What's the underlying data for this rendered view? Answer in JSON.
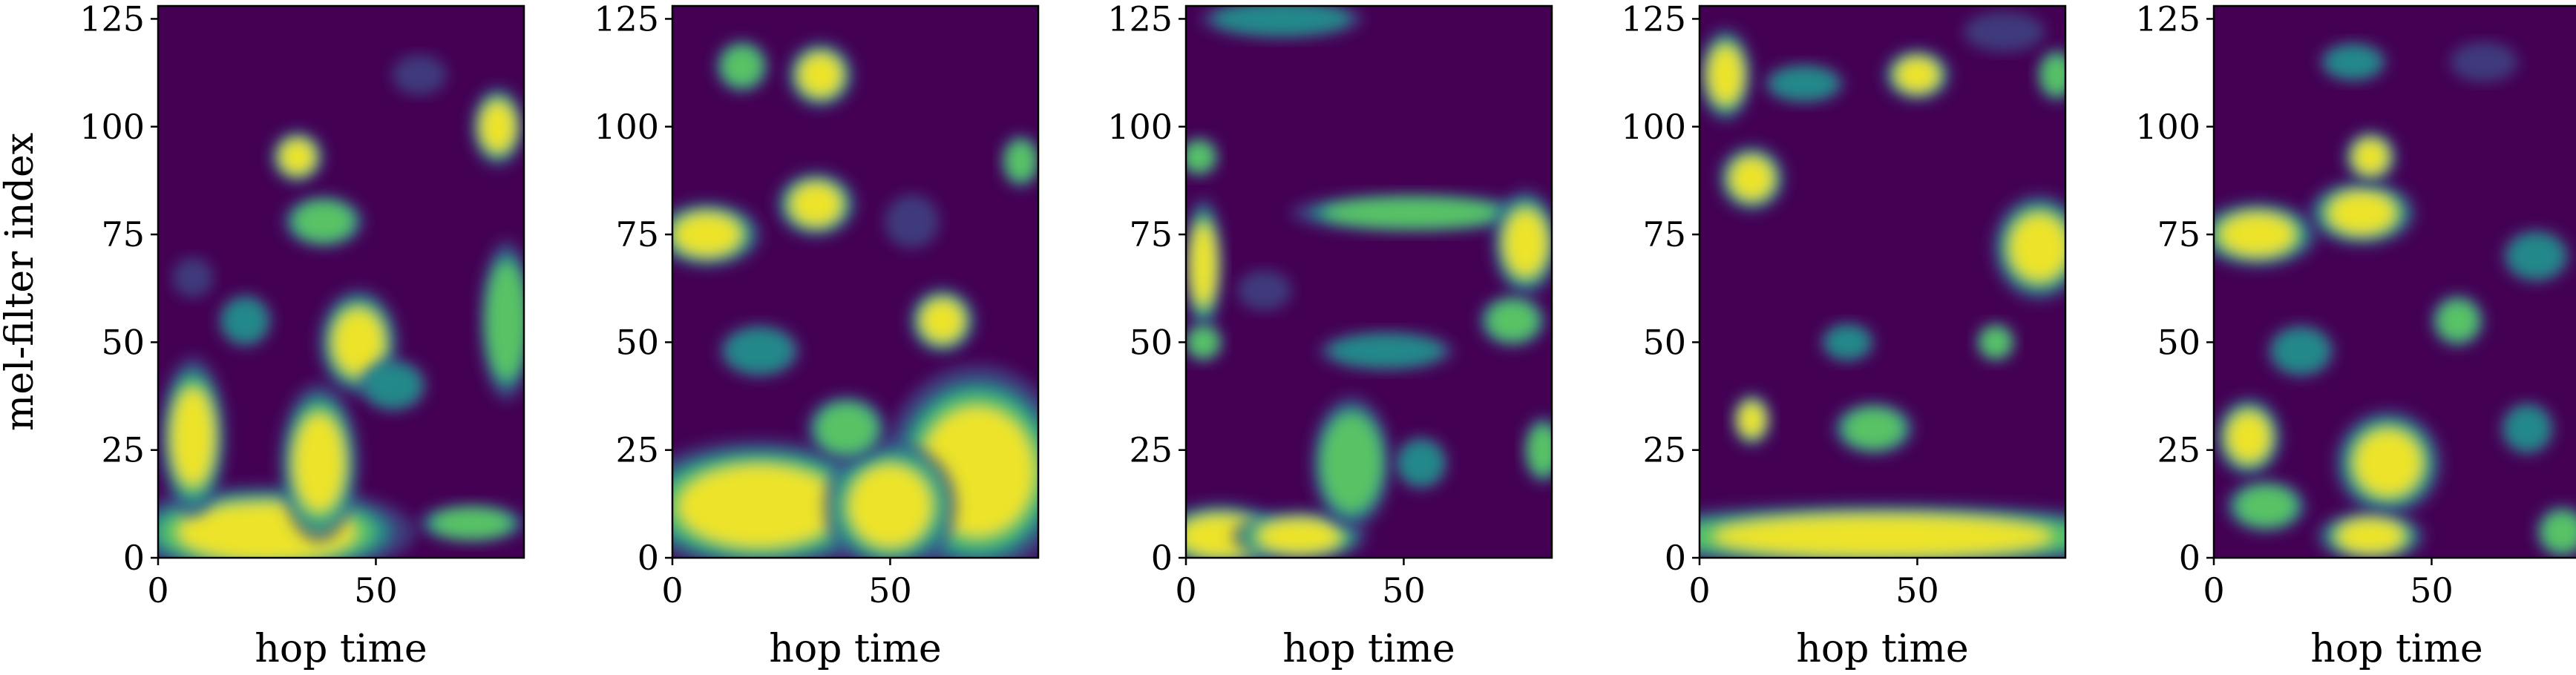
{
  "chart_data": {
    "type": "heatmap",
    "colormap": [
      "#440154",
      "#3b528b",
      "#21918c",
      "#5ec962",
      "#fde725"
    ],
    "panels": [
      {
        "xlabel": "hop time",
        "ylabel": "mel-filter index",
        "xlim": [
          0,
          84
        ],
        "ylim": [
          0,
          128
        ],
        "xticks": [
          0,
          50
        ],
        "yticks": [
          0,
          25,
          50,
          75,
          100,
          125
        ],
        "blobs": [
          {
            "x": 25,
            "y": 6,
            "rx": 22,
            "ry": 7,
            "v": 1.0
          },
          {
            "x": 8,
            "y": 28,
            "rx": 5,
            "ry": 12,
            "v": 1.0
          },
          {
            "x": 37,
            "y": 22,
            "rx": 6,
            "ry": 12,
            "v": 0.95
          },
          {
            "x": 46,
            "y": 50,
            "rx": 6,
            "ry": 8,
            "v": 0.9
          },
          {
            "x": 32,
            "y": 93,
            "rx": 4,
            "ry": 4,
            "v": 0.9
          },
          {
            "x": 38,
            "y": 78,
            "rx": 6,
            "ry": 4,
            "v": 0.8
          },
          {
            "x": 78,
            "y": 100,
            "rx": 4,
            "ry": 6,
            "v": 0.95
          },
          {
            "x": 80,
            "y": 55,
            "rx": 4,
            "ry": 12,
            "v": 0.75
          },
          {
            "x": 72,
            "y": 8,
            "rx": 8,
            "ry": 3,
            "v": 0.8
          },
          {
            "x": 20,
            "y": 55,
            "rx": 4,
            "ry": 4,
            "v": 0.6
          },
          {
            "x": 54,
            "y": 40,
            "rx": 5,
            "ry": 4,
            "v": 0.65
          },
          {
            "x": 60,
            "y": 112,
            "rx": 4,
            "ry": 3,
            "v": 0.55
          },
          {
            "x": 8,
            "y": 65,
            "rx": 3,
            "ry": 3,
            "v": 0.5
          }
        ]
      },
      {
        "xlabel": "hop time",
        "ylabel": "",
        "xlim": [
          0,
          84
        ],
        "ylim": [
          0,
          128
        ],
        "xticks": [
          0,
          50
        ],
        "yticks": [
          0,
          25,
          50,
          75,
          100,
          125
        ],
        "blobs": [
          {
            "x": 20,
            "y": 12,
            "rx": 20,
            "ry": 10,
            "v": 1.0
          },
          {
            "x": 70,
            "y": 20,
            "rx": 14,
            "ry": 16,
            "v": 1.0
          },
          {
            "x": 50,
            "y": 12,
            "rx": 10,
            "ry": 10,
            "v": 0.95
          },
          {
            "x": 8,
            "y": 75,
            "rx": 8,
            "ry": 5,
            "v": 1.0
          },
          {
            "x": 33,
            "y": 82,
            "rx": 6,
            "ry": 5,
            "v": 0.95
          },
          {
            "x": 34,
            "y": 112,
            "rx": 5,
            "ry": 5,
            "v": 1.0
          },
          {
            "x": 16,
            "y": 114,
            "rx": 4,
            "ry": 4,
            "v": 0.8
          },
          {
            "x": 62,
            "y": 55,
            "rx": 5,
            "ry": 5,
            "v": 0.9
          },
          {
            "x": 40,
            "y": 30,
            "rx": 6,
            "ry": 5,
            "v": 0.8
          },
          {
            "x": 80,
            "y": 92,
            "rx": 3,
            "ry": 4,
            "v": 0.8
          },
          {
            "x": 20,
            "y": 48,
            "rx": 6,
            "ry": 4,
            "v": 0.65
          },
          {
            "x": 55,
            "y": 78,
            "rx": 4,
            "ry": 4,
            "v": 0.55
          }
        ]
      },
      {
        "xlabel": "hop time",
        "ylabel": "",
        "xlim": [
          0,
          84
        ],
        "ylim": [
          0,
          128
        ],
        "xticks": [
          0,
          50
        ],
        "yticks": [
          0,
          25,
          50,
          75,
          100,
          125
        ],
        "blobs": [
          {
            "x": 8,
            "y": 5,
            "rx": 10,
            "ry": 5,
            "v": 0.95
          },
          {
            "x": 26,
            "y": 5,
            "rx": 10,
            "ry": 4,
            "v": 0.9
          },
          {
            "x": 38,
            "y": 22,
            "rx": 6,
            "ry": 10,
            "v": 0.85
          },
          {
            "x": 52,
            "y": 80,
            "rx": 18,
            "ry": 3,
            "v": 0.85
          },
          {
            "x": 78,
            "y": 73,
            "rx": 5,
            "ry": 8,
            "v": 0.95
          },
          {
            "x": 75,
            "y": 55,
            "rx": 5,
            "ry": 4,
            "v": 0.85
          },
          {
            "x": 4,
            "y": 68,
            "rx": 3,
            "ry": 10,
            "v": 0.9
          },
          {
            "x": 3,
            "y": 93,
            "rx": 3,
            "ry": 3,
            "v": 0.8
          },
          {
            "x": 4,
            "y": 50,
            "rx": 3,
            "ry": 3,
            "v": 0.8
          },
          {
            "x": 82,
            "y": 25,
            "rx": 3,
            "ry": 5,
            "v": 0.85
          },
          {
            "x": 46,
            "y": 48,
            "rx": 10,
            "ry": 3,
            "v": 0.6
          },
          {
            "x": 22,
            "y": 125,
            "rx": 12,
            "ry": 3,
            "v": 0.6
          },
          {
            "x": 54,
            "y": 22,
            "rx": 4,
            "ry": 4,
            "v": 0.6
          },
          {
            "x": 18,
            "y": 62,
            "rx": 4,
            "ry": 3,
            "v": 0.55
          }
        ]
      },
      {
        "xlabel": "hop time",
        "ylabel": "",
        "xlim": [
          0,
          84
        ],
        "ylim": [
          0,
          128
        ],
        "xticks": [
          0,
          50
        ],
        "yticks": [
          0,
          25,
          50,
          75,
          100,
          125
        ],
        "blobs": [
          {
            "x": 42,
            "y": 5,
            "rx": 42,
            "ry": 5,
            "v": 1.0
          },
          {
            "x": 78,
            "y": 72,
            "rx": 7,
            "ry": 8,
            "v": 1.0
          },
          {
            "x": 12,
            "y": 88,
            "rx": 5,
            "ry": 5,
            "v": 1.0
          },
          {
            "x": 6,
            "y": 112,
            "rx": 4,
            "ry": 7,
            "v": 1.0
          },
          {
            "x": 50,
            "y": 112,
            "rx": 5,
            "ry": 4,
            "v": 0.95
          },
          {
            "x": 82,
            "y": 112,
            "rx": 3,
            "ry": 4,
            "v": 0.85
          },
          {
            "x": 12,
            "y": 32,
            "rx": 3,
            "ry": 4,
            "v": 0.95
          },
          {
            "x": 40,
            "y": 30,
            "rx": 6,
            "ry": 4,
            "v": 0.75
          },
          {
            "x": 68,
            "y": 50,
            "rx": 3,
            "ry": 3,
            "v": 0.8
          },
          {
            "x": 24,
            "y": 110,
            "rx": 6,
            "ry": 3,
            "v": 0.6
          },
          {
            "x": 34,
            "y": 50,
            "rx": 4,
            "ry": 3,
            "v": 0.6
          },
          {
            "x": 70,
            "y": 122,
            "rx": 6,
            "ry": 3,
            "v": 0.55
          }
        ]
      },
      {
        "xlabel": "hop time",
        "ylabel": "",
        "xlim": [
          0,
          84
        ],
        "ylim": [
          0,
          128
        ],
        "xticks": [
          0,
          50
        ],
        "yticks": [
          0,
          25,
          50,
          75,
          100,
          125
        ],
        "blobs": [
          {
            "x": 10,
            "y": 75,
            "rx": 9,
            "ry": 5,
            "v": 1.0
          },
          {
            "x": 34,
            "y": 80,
            "rx": 8,
            "ry": 5,
            "v": 0.95
          },
          {
            "x": 36,
            "y": 93,
            "rx": 4,
            "ry": 4,
            "v": 0.9
          },
          {
            "x": 8,
            "y": 28,
            "rx": 5,
            "ry": 6,
            "v": 1.0
          },
          {
            "x": 40,
            "y": 22,
            "rx": 8,
            "ry": 8,
            "v": 0.9
          },
          {
            "x": 36,
            "y": 5,
            "rx": 8,
            "ry": 4,
            "v": 0.9
          },
          {
            "x": 12,
            "y": 12,
            "rx": 6,
            "ry": 4,
            "v": 0.85
          },
          {
            "x": 80,
            "y": 6,
            "rx": 4,
            "ry": 4,
            "v": 0.8
          },
          {
            "x": 56,
            "y": 55,
            "rx": 4,
            "ry": 4,
            "v": 0.8
          },
          {
            "x": 72,
            "y": 30,
            "rx": 4,
            "ry": 4,
            "v": 0.65
          },
          {
            "x": 74,
            "y": 70,
            "rx": 5,
            "ry": 4,
            "v": 0.7
          },
          {
            "x": 20,
            "y": 48,
            "rx": 5,
            "ry": 4,
            "v": 0.7
          },
          {
            "x": 32,
            "y": 115,
            "rx": 5,
            "ry": 3,
            "v": 0.6
          },
          {
            "x": 62,
            "y": 115,
            "rx": 5,
            "ry": 3,
            "v": 0.55
          }
        ]
      }
    ]
  }
}
